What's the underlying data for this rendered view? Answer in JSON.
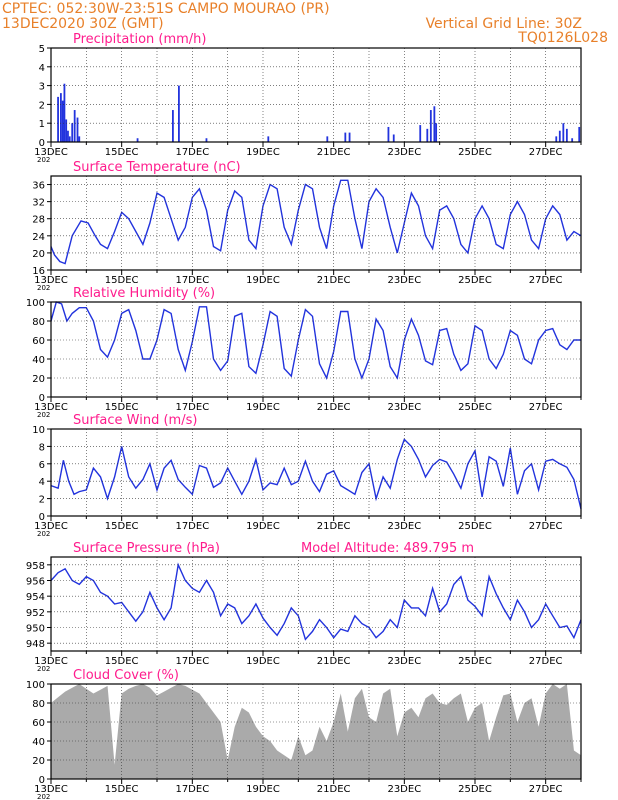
{
  "header": {
    "line1": "CPTEC:   052:30W-23:51S  CAMPO MOURAO (PR)",
    "line2": "13DEC2020 30Z (GMT)",
    "grid_note": "Vertical Grid Line: 30Z",
    "code": "TQ0126L028"
  },
  "x_axis": {
    "labels": [
      "13DEC",
      "15DEC",
      "17DEC",
      "19DEC",
      "21DEC",
      "23DEC",
      "25DEC",
      "27DEC"
    ],
    "stub": "202",
    "days": 15
  },
  "colors": {
    "title": "#ff1c8d",
    "header": "#e8802a",
    "line": "#2233dd",
    "cloud": "#aaaaaa",
    "grid": "#333333"
  },
  "chart_data": [
    {
      "id": "precip",
      "type": "bar",
      "title": "Precipitation (mm/h)",
      "ylim": [
        0,
        5
      ],
      "yticks": [
        0,
        1,
        2,
        3,
        4,
        5
      ],
      "x": [
        0.2,
        0.28,
        0.33,
        0.38,
        0.43,
        0.48,
        0.53,
        0.6,
        0.67,
        0.75,
        0.8,
        2.45,
        3.45,
        3.62,
        4.4,
        6.15,
        7.82,
        8.33,
        8.45,
        9.55,
        9.7,
        10.45,
        10.65,
        10.75,
        10.85,
        10.9,
        14.3,
        14.4,
        14.5,
        14.6,
        14.75,
        14.95
      ],
      "values": [
        2.4,
        2.6,
        2.2,
        3.1,
        1.2,
        0.6,
        0.3,
        1.0,
        1.7,
        1.3,
        0.3,
        0.2,
        1.7,
        3.0,
        0.2,
        0.3,
        0.3,
        0.5,
        0.5,
        0.8,
        0.4,
        0.9,
        0.7,
        1.7,
        1.9,
        1.0,
        0.3,
        0.6,
        1.0,
        0.7,
        0.2,
        0.8
      ]
    },
    {
      "id": "temp",
      "type": "line",
      "title": "Surface Temperature (nC)",
      "ylim": [
        16,
        38
      ],
      "yticks": [
        16,
        20,
        24,
        28,
        32,
        36
      ],
      "x": [
        0,
        0.1,
        0.25,
        0.4,
        0.6,
        0.85,
        1.05,
        1.25,
        1.4,
        1.6,
        1.8,
        2.0,
        2.2,
        2.4,
        2.6,
        2.8,
        3.0,
        3.2,
        3.4,
        3.6,
        3.8,
        4.0,
        4.2,
        4.4,
        4.6,
        4.8,
        5.0,
        5.2,
        5.4,
        5.6,
        5.8,
        6.0,
        6.2,
        6.4,
        6.6,
        6.8,
        7.0,
        7.2,
        7.4,
        7.6,
        7.8,
        8.0,
        8.2,
        8.4,
        8.6,
        8.8,
        9.0,
        9.2,
        9.4,
        9.6,
        9.8,
        10.0,
        10.2,
        10.4,
        10.6,
        10.8,
        11.0,
        11.2,
        11.4,
        11.6,
        11.8,
        12.0,
        12.2,
        12.4,
        12.6,
        12.8,
        13.0,
        13.2,
        13.4,
        13.6,
        13.8,
        14.0,
        14.2,
        14.4,
        14.6,
        14.8,
        15.0
      ],
      "values": [
        21.5,
        19.5,
        18,
        17.5,
        24,
        27.5,
        27,
        24,
        22,
        21,
        25,
        29.5,
        28,
        25,
        22,
        27,
        34,
        33,
        28,
        23,
        26,
        33,
        35,
        30,
        21.5,
        20.5,
        30,
        34.5,
        33,
        23,
        21,
        31,
        36,
        35,
        26,
        22,
        30,
        36,
        35,
        26,
        21,
        31,
        37,
        37,
        28,
        21,
        32,
        35,
        33,
        26,
        20,
        27,
        34,
        31,
        24,
        21,
        30,
        31,
        28,
        22,
        20,
        28,
        31,
        28,
        22,
        21,
        29,
        32,
        29,
        23,
        21,
        28,
        31,
        29,
        23,
        25,
        24
      ],
      "title_align": "left"
    },
    {
      "id": "rh",
      "type": "line",
      "title": "Relative Humidity (%)",
      "ylim": [
        0,
        100
      ],
      "yticks": [
        0,
        20,
        40,
        60,
        80,
        100
      ],
      "x": [
        0,
        0.15,
        0.3,
        0.45,
        0.6,
        0.8,
        1.0,
        1.2,
        1.4,
        1.6,
        1.8,
        2.0,
        2.2,
        2.4,
        2.6,
        2.8,
        3.0,
        3.2,
        3.4,
        3.6,
        3.8,
        4.0,
        4.2,
        4.4,
        4.6,
        4.8,
        5.0,
        5.2,
        5.4,
        5.6,
        5.8,
        6.0,
        6.2,
        6.4,
        6.6,
        6.8,
        7.0,
        7.2,
        7.4,
        7.6,
        7.8,
        8.0,
        8.2,
        8.4,
        8.6,
        8.8,
        9.0,
        9.2,
        9.4,
        9.6,
        9.8,
        10.0,
        10.2,
        10.4,
        10.6,
        10.8,
        11.0,
        11.2,
        11.4,
        11.6,
        11.8,
        12.0,
        12.2,
        12.4,
        12.6,
        12.8,
        13.0,
        13.2,
        13.4,
        13.6,
        13.8,
        14.0,
        14.2,
        14.4,
        14.6,
        14.8,
        15.0
      ],
      "values": [
        80,
        100,
        98,
        80,
        88,
        94,
        94,
        80,
        50,
        42,
        60,
        88,
        92,
        70,
        40,
        40,
        60,
        92,
        88,
        50,
        28,
        58,
        95,
        95,
        40,
        28,
        38,
        85,
        88,
        32,
        25,
        55,
        90,
        85,
        30,
        22,
        60,
        92,
        85,
        35,
        20,
        48,
        90,
        90,
        40,
        20,
        40,
        82,
        70,
        32,
        20,
        60,
        82,
        65,
        38,
        34,
        70,
        72,
        45,
        28,
        35,
        75,
        70,
        40,
        30,
        45,
        70,
        65,
        40,
        35,
        60,
        70,
        72,
        55,
        50,
        60,
        60
      ],
      "title_align": "left"
    },
    {
      "id": "wind",
      "type": "line",
      "title": "Surface Wind (m/s)",
      "ylim": [
        0,
        10
      ],
      "yticks": [
        0,
        2,
        4,
        6,
        8,
        10
      ],
      "x": [
        0,
        0.2,
        0.35,
        0.5,
        0.65,
        0.8,
        1.0,
        1.2,
        1.4,
        1.6,
        1.8,
        2.0,
        2.2,
        2.4,
        2.6,
        2.8,
        3.0,
        3.2,
        3.4,
        3.6,
        3.8,
        4.0,
        4.2,
        4.4,
        4.6,
        4.8,
        5.0,
        5.2,
        5.4,
        5.6,
        5.8,
        6.0,
        6.2,
        6.4,
        6.6,
        6.8,
        7.0,
        7.2,
        7.4,
        7.6,
        7.8,
        8.0,
        8.2,
        8.4,
        8.6,
        8.8,
        9.0,
        9.2,
        9.4,
        9.6,
        9.8,
        10.0,
        10.2,
        10.4,
        10.6,
        10.8,
        11.0,
        11.2,
        11.4,
        11.6,
        11.8,
        12.0,
        12.2,
        12.4,
        12.6,
        12.8,
        13.0,
        13.2,
        13.4,
        13.6,
        13.8,
        14.0,
        14.2,
        14.4,
        14.6,
        14.8,
        15.0
      ],
      "values": [
        3.5,
        3.2,
        6.4,
        4.0,
        2.5,
        2.8,
        3.0,
        5.5,
        4.5,
        2.0,
        4.5,
        8.0,
        4.5,
        3.2,
        4.2,
        6.0,
        3.0,
        5.5,
        6.4,
        4.2,
        3.3,
        2.5,
        5.8,
        5.5,
        3.3,
        3.8,
        5.5,
        4.0,
        2.5,
        4.0,
        6.5,
        3.0,
        3.8,
        3.6,
        5.5,
        3.6,
        4.0,
        6.3,
        4.0,
        2.8,
        4.8,
        5.2,
        3.5,
        3.0,
        2.5,
        5.0,
        6.0,
        2.0,
        4.5,
        3.2,
        6.5,
        8.8,
        8.0,
        6.5,
        4.5,
        5.8,
        6.5,
        6.2,
        4.8,
        3.2,
        6.0,
        7.5,
        2.2,
        6.8,
        6.3,
        3.4,
        7.8,
        2.5,
        5.2,
        6.0,
        3.0,
        6.3,
        6.5,
        6.0,
        5.6,
        4.2,
        0.8
      ],
      "title_align": "left"
    },
    {
      "id": "pres",
      "type": "line",
      "title": "Surface Pressure (hPa)",
      "subtitle": "Model Altitude: 489.795 m",
      "ylim": [
        947,
        959
      ],
      "yticks": [
        948,
        950,
        952,
        954,
        956,
        958
      ],
      "x": [
        0,
        0.2,
        0.4,
        0.6,
        0.8,
        1.0,
        1.2,
        1.4,
        1.6,
        1.8,
        2.0,
        2.2,
        2.4,
        2.6,
        2.8,
        3.0,
        3.2,
        3.4,
        3.6,
        3.8,
        4.0,
        4.2,
        4.4,
        4.6,
        4.8,
        5.0,
        5.2,
        5.4,
        5.6,
        5.8,
        6.0,
        6.2,
        6.4,
        6.6,
        6.8,
        7.0,
        7.2,
        7.4,
        7.6,
        7.8,
        8.0,
        8.2,
        8.4,
        8.6,
        8.8,
        9.0,
        9.2,
        9.4,
        9.6,
        9.8,
        10.0,
        10.2,
        10.4,
        10.6,
        10.8,
        11.0,
        11.2,
        11.4,
        11.6,
        11.8,
        12.0,
        12.2,
        12.4,
        12.6,
        12.8,
        13.0,
        13.2,
        13.4,
        13.6,
        13.8,
        14.0,
        14.2,
        14.4,
        14.6,
        14.8,
        15.0
      ],
      "values": [
        956,
        957,
        957.5,
        956,
        955.5,
        956.5,
        956,
        954.5,
        954,
        953,
        953.2,
        952,
        950.8,
        952,
        954.5,
        952.5,
        951,
        952.5,
        958,
        956,
        955,
        954.5,
        956,
        954.5,
        951.5,
        953,
        952.5,
        950.5,
        951.5,
        953,
        951.2,
        950,
        949,
        950.5,
        952.5,
        951.5,
        948.5,
        949.5,
        951,
        950,
        948.7,
        949.8,
        949.5,
        951.5,
        950.5,
        950,
        948.7,
        949.5,
        951,
        950,
        953.5,
        952.5,
        952.5,
        951.5,
        955,
        952,
        953,
        955.5,
        956.5,
        953.5,
        952.7,
        951.5,
        956.5,
        954.3,
        952.5,
        951,
        953.5,
        952,
        950,
        951,
        953,
        951.5,
        950,
        950.2,
        948.7,
        951
      ],
      "title_align": "left"
    },
    {
      "id": "cloud",
      "type": "area",
      "title": "Cloud Cover (%)",
      "ylim": [
        0,
        100
      ],
      "yticks": [
        0,
        20,
        40,
        60,
        80,
        100
      ],
      "x": [
        0,
        0.2,
        0.4,
        0.6,
        0.8,
        1.0,
        1.2,
        1.4,
        1.6,
        1.8,
        2.0,
        2.2,
        2.4,
        2.6,
        2.8,
        3.0,
        3.2,
        3.4,
        3.6,
        3.8,
        4.0,
        4.2,
        4.4,
        4.6,
        4.8,
        5.0,
        5.2,
        5.4,
        5.6,
        5.8,
        6.0,
        6.2,
        6.4,
        6.6,
        6.8,
        7.0,
        7.2,
        7.4,
        7.6,
        7.8,
        8.0,
        8.2,
        8.4,
        8.6,
        8.8,
        9.0,
        9.2,
        9.4,
        9.6,
        9.8,
        10.0,
        10.2,
        10.4,
        10.6,
        10.8,
        11.0,
        11.2,
        11.4,
        11.6,
        11.8,
        12.0,
        12.2,
        12.4,
        12.6,
        12.8,
        13.0,
        13.2,
        13.4,
        13.6,
        13.8,
        14.0,
        14.2,
        14.4,
        14.6,
        14.8,
        15.0
      ],
      "values": [
        80,
        86,
        92,
        96,
        100,
        95,
        90,
        94,
        98,
        15,
        90,
        95,
        98,
        100,
        96,
        88,
        92,
        96,
        100,
        98,
        94,
        90,
        80,
        70,
        60,
        20,
        55,
        75,
        70,
        55,
        45,
        40,
        30,
        25,
        20,
        45,
        25,
        30,
        55,
        40,
        60,
        90,
        50,
        85,
        95,
        65,
        60,
        90,
        95,
        45,
        70,
        75,
        65,
        85,
        90,
        80,
        78,
        85,
        90,
        60,
        75,
        80,
        40,
        65,
        88,
        90,
        60,
        80,
        85,
        55,
        90,
        100,
        95,
        100,
        30,
        25
      ],
      "title_align": "left"
    }
  ]
}
